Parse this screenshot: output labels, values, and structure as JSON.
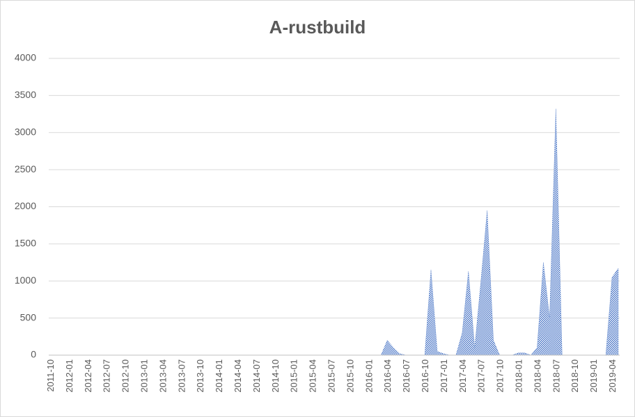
{
  "chart_data": {
    "type": "area",
    "title": "A-rustbuild",
    "categories": [
      "2011-10",
      null,
      null,
      "2012-01",
      null,
      null,
      "2012-04",
      null,
      null,
      "2012-07",
      null,
      null,
      "2012-10",
      null,
      null,
      "2013-01",
      null,
      null,
      "2013-04",
      null,
      null,
      "2013-07",
      null,
      null,
      "2013-10",
      null,
      null,
      "2014-01",
      null,
      null,
      "2014-04",
      null,
      null,
      "2014-07",
      null,
      null,
      "2014-10",
      null,
      null,
      "2015-01",
      null,
      null,
      "2015-04",
      null,
      null,
      "2015-07",
      null,
      null,
      "2015-10",
      null,
      null,
      "2016-01",
      null,
      null,
      "2016-04",
      null,
      null,
      "2016-07",
      null,
      null,
      "2016-10",
      null,
      null,
      "2017-01",
      null,
      null,
      "2017-04",
      null,
      null,
      "2017-07",
      null,
      null,
      "2017-10",
      null,
      null,
      "2018-01",
      null,
      null,
      "2018-04",
      null,
      null,
      "2018-07",
      null,
      null,
      "2018-10",
      null,
      null,
      "2019-01",
      null,
      null,
      "2019-04",
      null
    ],
    "values": [
      0,
      0,
      0,
      0,
      0,
      0,
      0,
      0,
      0,
      0,
      0,
      0,
      0,
      0,
      0,
      0,
      0,
      0,
      0,
      0,
      0,
      0,
      0,
      0,
      0,
      0,
      0,
      0,
      0,
      0,
      0,
      0,
      0,
      0,
      0,
      0,
      0,
      0,
      0,
      0,
      0,
      0,
      0,
      0,
      0,
      0,
      0,
      0,
      0,
      0,
      0,
      0,
      0,
      0,
      200,
      100,
      20,
      0,
      0,
      0,
      0,
      1150,
      50,
      20,
      0,
      0,
      300,
      1130,
      100,
      1000,
      1950,
      200,
      0,
      0,
      0,
      30,
      30,
      0,
      100,
      1250,
      500,
      3320,
      0,
      0,
      0,
      0,
      0,
      0,
      0,
      0,
      1050,
      1170
    ],
    "color": "#4472c4",
    "ylim": [
      0,
      4000
    ],
    "yticks": [
      0,
      500,
      1000,
      1500,
      2000,
      2500,
      3000,
      3500,
      4000
    ],
    "grid": true
  }
}
